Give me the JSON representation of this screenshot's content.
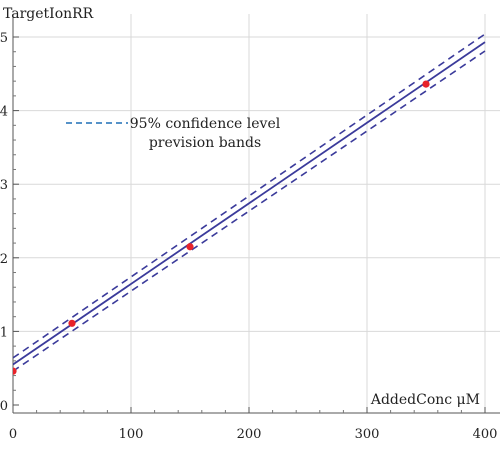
{
  "chart_data": {
    "type": "scatter",
    "title": "",
    "xlabel": "AddedConc μM",
    "ylabel": "TargetIonRR",
    "xlim": [
      0,
      400
    ],
    "ylim": [
      0,
      5
    ],
    "grid": true,
    "x_ticks": [
      0,
      100,
      200,
      300,
      400
    ],
    "y_ticks": [
      0,
      1,
      2,
      3,
      4,
      5
    ],
    "points": [
      {
        "x": 0,
        "y": 0.46
      },
      {
        "x": 50,
        "y": 1.11
      },
      {
        "x": 150,
        "y": 2.15
      },
      {
        "x": 350,
        "y": 4.36
      }
    ],
    "fit_line": {
      "x": [
        0,
        400
      ],
      "y": [
        0.55,
        4.93
      ]
    },
    "band_upper": {
      "x": [
        0,
        400
      ],
      "y": [
        0.64,
        5.04
      ]
    },
    "band_lower": {
      "x": [
        0,
        400
      ],
      "y": [
        0.46,
        4.81
      ]
    },
    "legend": {
      "label_line1": "95% confidence level",
      "label_line2": "prevision bands",
      "position": "upper-left"
    },
    "colors": {
      "line": "#3b3b9b",
      "points": "#e8232a",
      "grid": "#d9d9d9",
      "legend_dash": "#1f6fb5"
    }
  }
}
